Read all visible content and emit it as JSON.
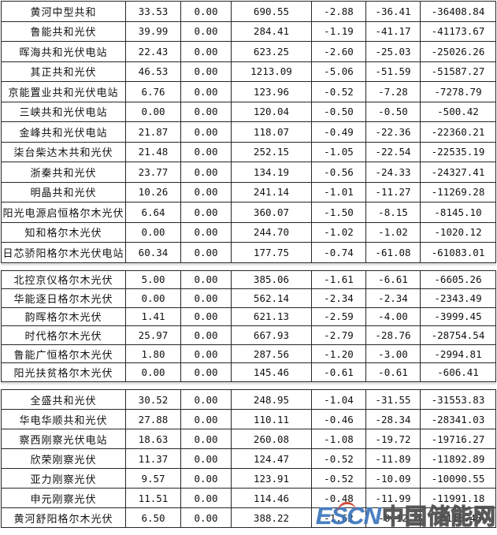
{
  "sections": [
    {
      "rows": [
        {
          "name": "黄河中型共和",
          "values": [
            "33.53",
            "0.00",
            "690.55",
            "-2.88",
            "-36.41",
            "-36408.84"
          ]
        },
        {
          "name": "鲁能共和光伏",
          "values": [
            "39.99",
            "0.00",
            "284.41",
            "-1.19",
            "-41.17",
            "-41173.67"
          ]
        },
        {
          "name": "晖海共和光伏电站",
          "values": [
            "22.43",
            "0.00",
            "623.25",
            "-2.60",
            "-25.03",
            "-25026.26"
          ]
        },
        {
          "name": "其正共和光伏",
          "values": [
            "46.53",
            "0.00",
            "1213.09",
            "-5.06",
            "-51.59",
            "-51587.27"
          ]
        },
        {
          "name": "京能置业共和光伏电站",
          "values": [
            "6.76",
            "0.00",
            "123.96",
            "-0.52",
            "-7.28",
            "-7278.79"
          ]
        },
        {
          "name": "三峡共和光伏电站",
          "values": [
            "0.00",
            "0.00",
            "120.04",
            "-0.50",
            "-0.50",
            "-500.42"
          ]
        },
        {
          "name": "金峰共和光伏电站",
          "values": [
            "21.87",
            "0.00",
            "118.07",
            "-0.49",
            "-22.36",
            "-22360.21"
          ]
        },
        {
          "name": "柒台柴达木共和光伏",
          "values": [
            "21.48",
            "0.00",
            "252.15",
            "-1.05",
            "-22.54",
            "-22535.19"
          ]
        },
        {
          "name": "浙秦共和光伏",
          "values": [
            "23.77",
            "0.00",
            "134.19",
            "-0.56",
            "-24.33",
            "-24327.41"
          ]
        },
        {
          "name": "明晶共和光伏",
          "values": [
            "10.26",
            "0.00",
            "241.14",
            "-1.01",
            "-11.27",
            "-11269.28"
          ]
        },
        {
          "name": "阳光电源启恒格尔木光伏",
          "values": [
            "6.64",
            "0.00",
            "360.07",
            "-1.50",
            "-8.15",
            "-8145.10"
          ]
        },
        {
          "name": "知和格尔木光伏",
          "values": [
            "0.00",
            "0.00",
            "244.70",
            "-1.02",
            "-1.02",
            "-1020.12"
          ]
        },
        {
          "name": "日芯骄阳格尔木光伏电站",
          "values": [
            "60.34",
            "0.00",
            "177.75",
            "-0.74",
            "-61.08",
            "-61083.01"
          ]
        }
      ]
    },
    {
      "rows": [
        {
          "name": "北控京仪格尔木光伏",
          "values": [
            "5.00",
            "0.00",
            "385.06",
            "-1.61",
            "-6.61",
            "-6605.26"
          ]
        },
        {
          "name": "华能逐日格尔木光伏",
          "values": [
            "0.00",
            "0.00",
            "562.14",
            "-2.34",
            "-2.34",
            "-2343.49"
          ]
        },
        {
          "name": "韵晖格尔木光伏",
          "values": [
            "1.41",
            "0.00",
            "621.13",
            "-2.59",
            "-4.00",
            "-3999.45"
          ]
        },
        {
          "name": "时代格尔木光伏",
          "values": [
            "25.97",
            "0.00",
            "667.93",
            "-2.79",
            "-28.76",
            "-28754.54"
          ]
        },
        {
          "name": "鲁能广恒格尔木光伏",
          "values": [
            "1.80",
            "0.00",
            "287.56",
            "-1.20",
            "-3.00",
            "-2994.81"
          ]
        },
        {
          "name": "阳光扶贫格尔木光伏",
          "values": [
            "0.00",
            "0.00",
            "145.46",
            "-0.61",
            "-0.61",
            "-606.41"
          ]
        }
      ]
    },
    {
      "rows": [
        {
          "name": "全盛共和光伏",
          "values": [
            "30.52",
            "0.00",
            "248.95",
            "-1.04",
            "-31.55",
            "-31553.83"
          ]
        },
        {
          "name": "华电华顺共和光伏",
          "values": [
            "27.88",
            "0.00",
            "110.11",
            "-0.46",
            "-28.34",
            "-28341.03"
          ]
        },
        {
          "name": "察西刚察光伏电站",
          "values": [
            "18.63",
            "0.00",
            "260.08",
            "-1.08",
            "-19.72",
            "-19716.27"
          ]
        },
        {
          "name": "欣荣刚察光伏",
          "values": [
            "11.37",
            "0.00",
            "124.47",
            "-0.52",
            "-11.89",
            "-11892.89"
          ]
        },
        {
          "name": "亚力刚察光伏",
          "values": [
            "9.57",
            "0.00",
            "123.91",
            "-0.52",
            "-10.09",
            "-10090.55"
          ]
        },
        {
          "name": "申元刚察光伏",
          "values": [
            "11.51",
            "0.00",
            "114.46",
            "-0.48",
            "-11.99",
            "-11991.18"
          ]
        },
        {
          "name": "黄河舒阳格尔木光伏",
          "values": [
            "6.50",
            "0.00",
            "388.22",
            "-1.62",
            "-8.12",
            "-8116.45"
          ]
        }
      ]
    }
  ],
  "watermark": {
    "logo_text": "ESCN",
    "site_name": "中国储能网",
    "logo_color": "#3d77be",
    "accent_color": "#cf3a28",
    "site_color": "#4d4d4d"
  }
}
